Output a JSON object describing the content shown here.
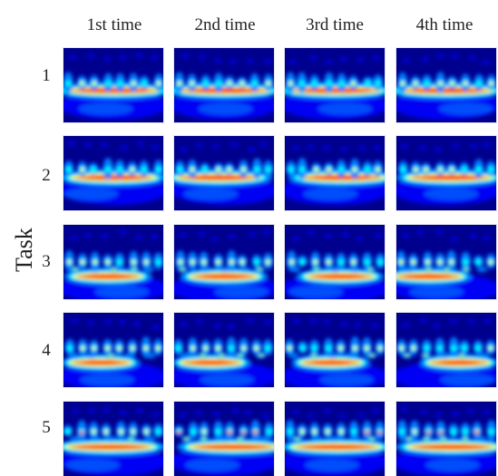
{
  "column_headers": [
    "1st time",
    "2nd time",
    "3rd time",
    "4th time"
  ],
  "row_title": "Task",
  "row_labels": [
    "1",
    "2",
    "3",
    "4",
    "5"
  ],
  "colormap": [
    "#00008f",
    "#0000ff",
    "#0080ff",
    "#00ffff",
    "#80ff80",
    "#ffff00",
    "#ff8000",
    "#ff0000",
    "#800000"
  ]
}
